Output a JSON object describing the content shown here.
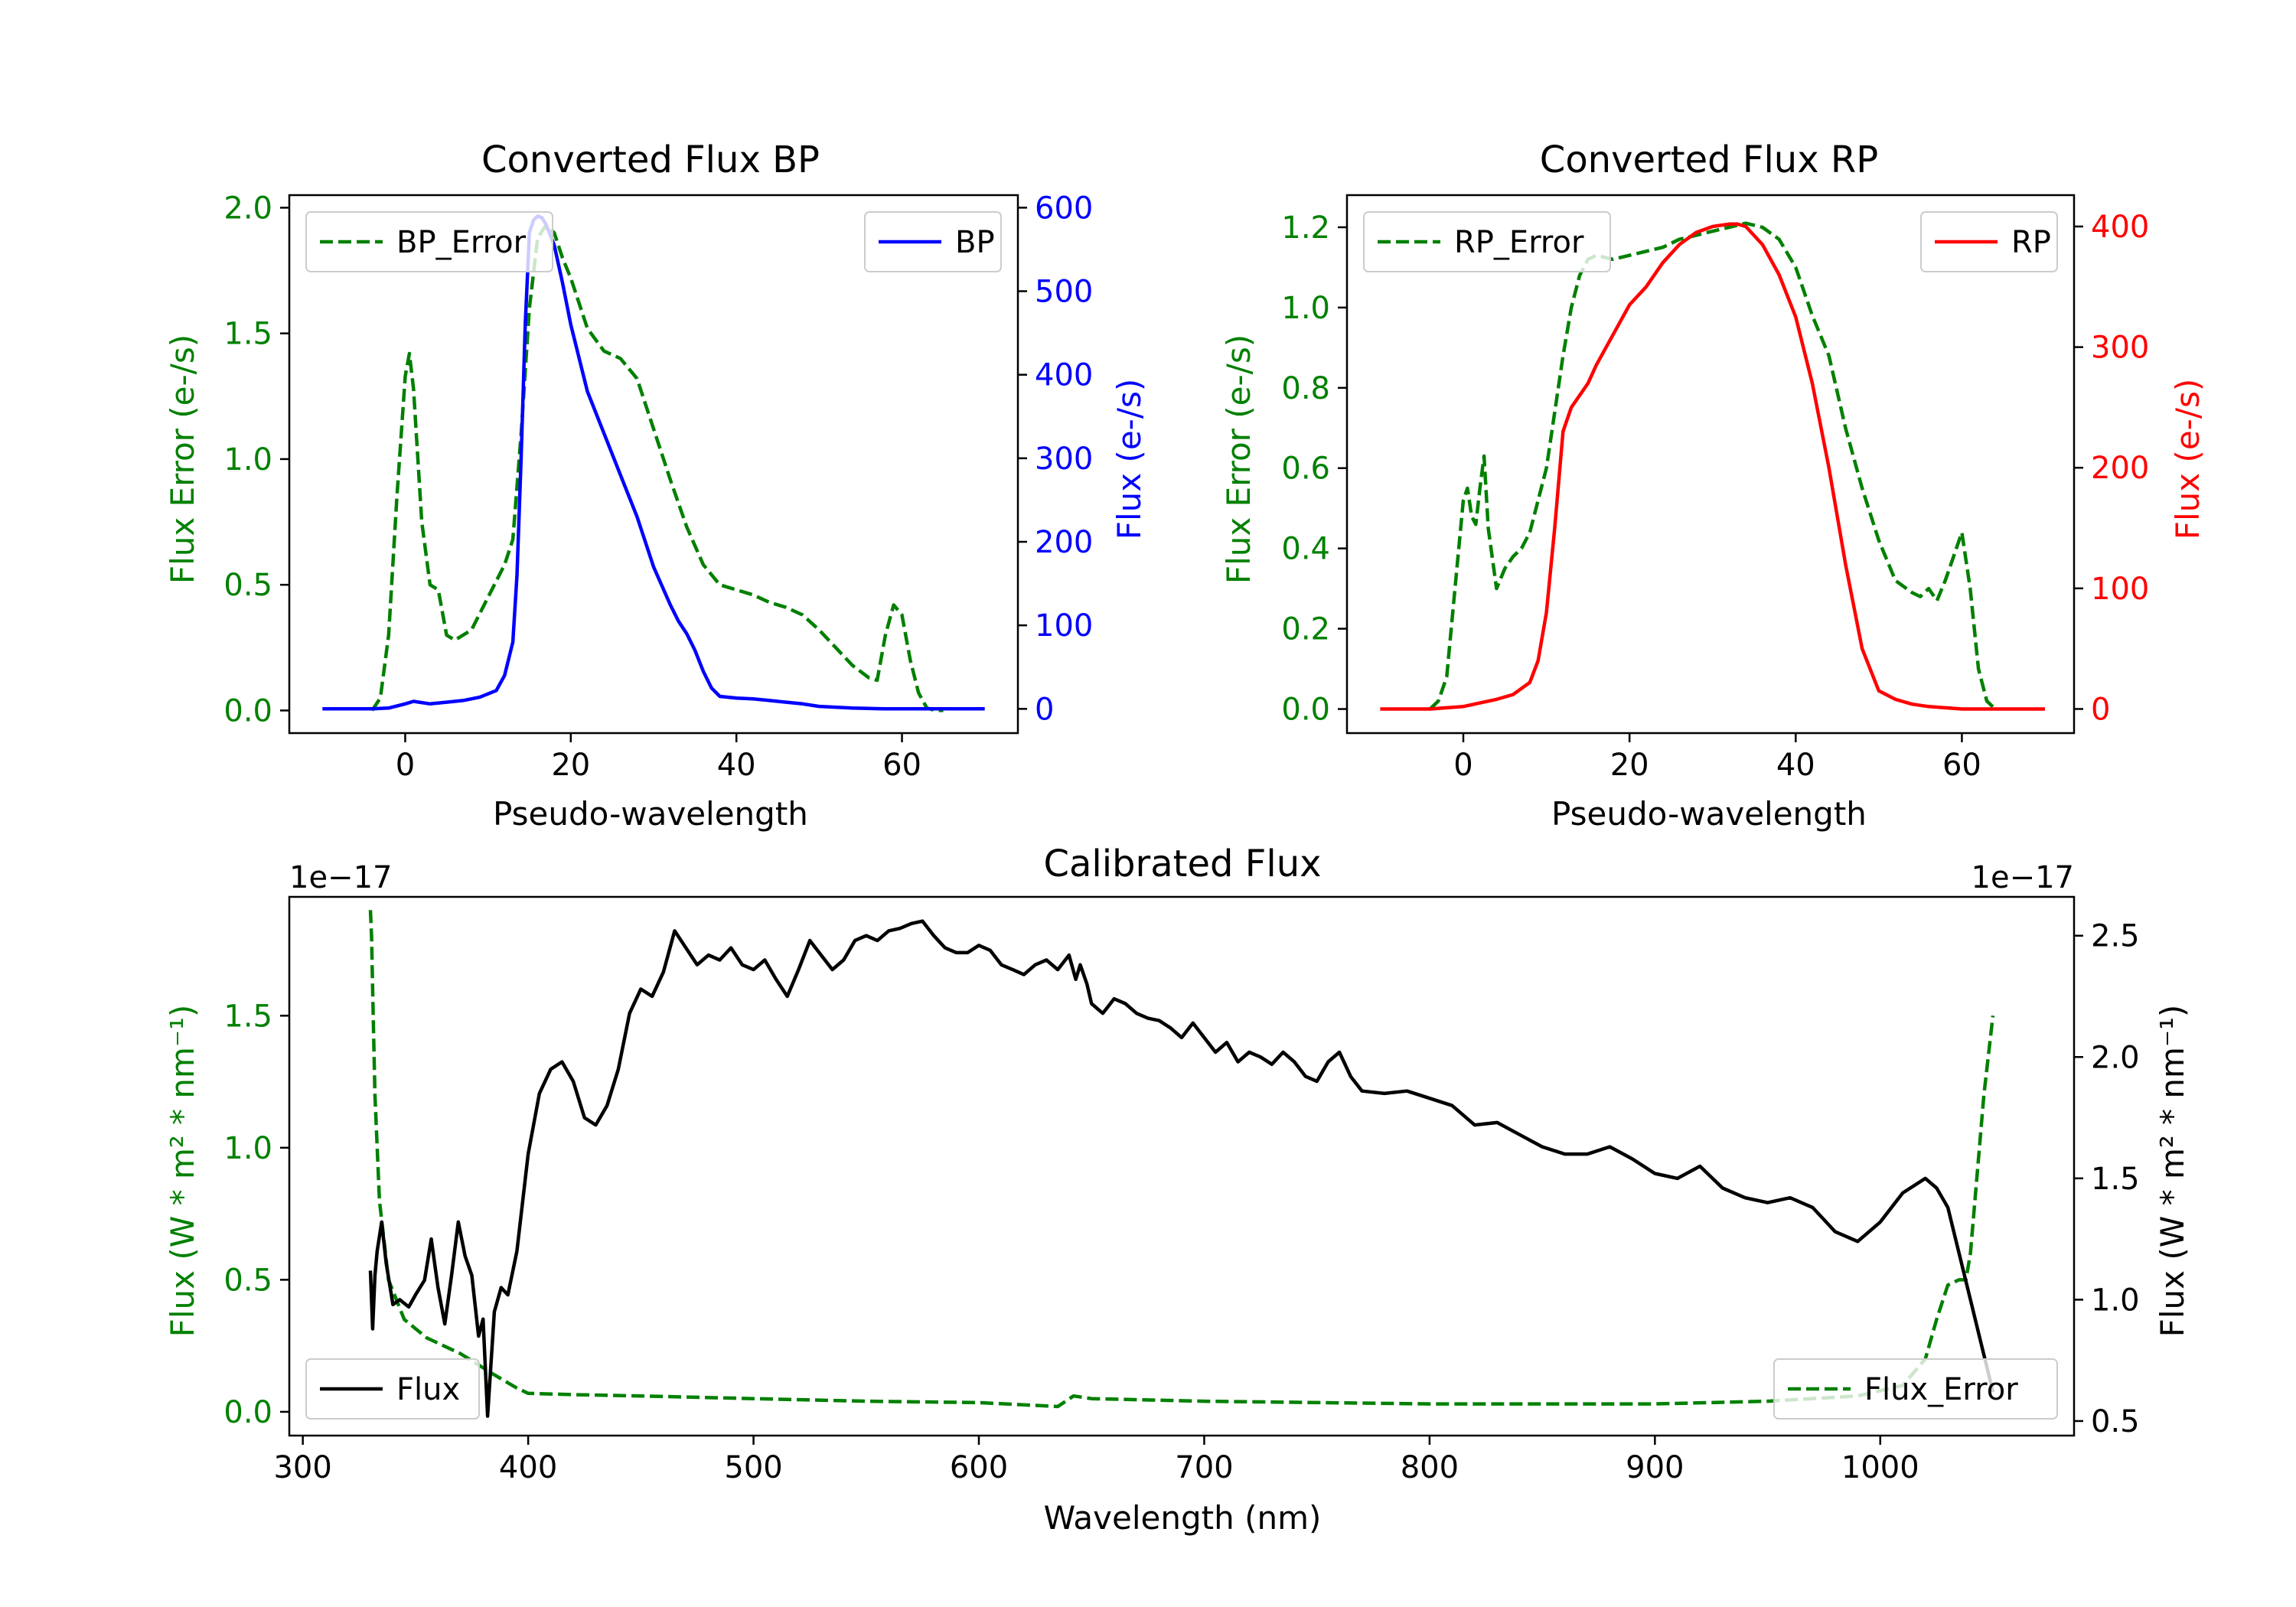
{
  "chart_data": [
    {
      "type": "line",
      "title": "Converted Flux BP",
      "xlabel": "Pseudo-wavelength",
      "ylabel_left": "Flux Error (e-/s)",
      "ylabel_right": "Flux (e-/s)",
      "xlim": [
        -14,
        74
      ],
      "ylim_left": [
        -0.09,
        2.05
      ],
      "ylim_right": [
        -29,
        615
      ],
      "xticks": [
        "0",
        "20",
        "40",
        "60"
      ],
      "yticks_left": [
        "0.0",
        "0.5",
        "1.0",
        "1.5",
        "2.0"
      ],
      "yticks_right": [
        "0",
        "100",
        "200",
        "300",
        "400",
        "500",
        "600"
      ],
      "legend_left": {
        "label": "BP_Error",
        "placement": "upper left"
      },
      "legend_right": {
        "label": "BP",
        "placement": "upper right"
      },
      "series": [
        {
          "name": "BP_Error",
          "axis": "left",
          "color": "#008000",
          "style": "dashed",
          "x": [
            -4,
            -3,
            -2,
            -1,
            0,
            0.5,
            1,
            2,
            3,
            4,
            5,
            6,
            8,
            10,
            12,
            13,
            14,
            15,
            16,
            17,
            18,
            19,
            20,
            22,
            24,
            26,
            28,
            30,
            32,
            34,
            36,
            38,
            40,
            42,
            44,
            46,
            48,
            50,
            52,
            54,
            56,
            57,
            58,
            59,
            60,
            61,
            62,
            63,
            64,
            65
          ],
          "y": [
            0.0,
            0.05,
            0.3,
            0.85,
            1.33,
            1.42,
            1.28,
            0.75,
            0.5,
            0.48,
            0.3,
            0.28,
            0.32,
            0.45,
            0.58,
            0.68,
            1.1,
            1.6,
            1.88,
            1.93,
            1.9,
            1.8,
            1.72,
            1.52,
            1.43,
            1.4,
            1.32,
            1.12,
            0.92,
            0.73,
            0.58,
            0.5,
            0.48,
            0.46,
            0.43,
            0.41,
            0.38,
            0.32,
            0.25,
            0.18,
            0.13,
            0.12,
            0.3,
            0.42,
            0.38,
            0.2,
            0.07,
            0.01,
            0.0,
            0.0
          ]
        },
        {
          "name": "BP",
          "axis": "right",
          "color": "#0000ff",
          "style": "solid",
          "x": [
            -10,
            -4,
            -2,
            0,
            1,
            3,
            5,
            7,
            9,
            11,
            12,
            13,
            13.5,
            14,
            14.5,
            15,
            15.5,
            16,
            16.5,
            17,
            18,
            19,
            20,
            22,
            24,
            26,
            28,
            30,
            32,
            33,
            34,
            35,
            36,
            37,
            38,
            40,
            42,
            44,
            46,
            48,
            50,
            54,
            58,
            62,
            66,
            70
          ],
          "y": [
            0,
            0,
            1,
            6,
            9,
            6,
            8,
            10,
            14,
            22,
            40,
            80,
            160,
            300,
            460,
            570,
            585,
            590,
            588,
            580,
            555,
            510,
            460,
            380,
            330,
            280,
            230,
            170,
            125,
            105,
            90,
            70,
            45,
            25,
            15,
            13,
            12,
            10,
            8,
            6,
            3,
            1,
            0,
            0,
            0,
            0
          ]
        }
      ]
    },
    {
      "type": "line",
      "title": "Converted Flux RP",
      "xlabel": "Pseudo-wavelength",
      "ylabel_left": "Flux Error (e-/s)",
      "ylabel_right": "Flux (e-/s)",
      "xlim": [
        -14,
        73.5
      ],
      "ylim_left": [
        -0.06,
        1.28
      ],
      "ylim_right": [
        -20,
        426
      ],
      "xticks": [
        "0",
        "20",
        "40",
        "60"
      ],
      "yticks_left": [
        "0.0",
        "0.2",
        "0.4",
        "0.6",
        "0.8",
        "1.0",
        "1.2"
      ],
      "yticks_right": [
        "0",
        "100",
        "200",
        "300",
        "400"
      ],
      "legend_left": {
        "label": "RP_Error",
        "placement": "upper left"
      },
      "legend_right": {
        "label": "RP",
        "placement": "upper right"
      },
      "series": [
        {
          "name": "RP_Error",
          "axis": "left",
          "color": "#008000",
          "style": "dashed",
          "x": [
            -4,
            -3,
            -2,
            -1,
            0,
            0.5,
            1,
            1.5,
            2,
            2.5,
            3,
            4,
            5,
            6,
            7,
            8,
            10,
            12,
            13,
            14,
            15,
            16,
            18,
            20,
            22,
            24,
            26,
            28,
            30,
            32,
            34,
            36,
            38,
            40,
            42,
            44,
            46,
            48,
            50,
            52,
            54,
            55,
            56,
            57,
            58,
            59,
            60,
            61,
            62,
            63,
            64
          ],
          "y": [
            0.0,
            0.02,
            0.08,
            0.3,
            0.52,
            0.55,
            0.48,
            0.46,
            0.55,
            0.63,
            0.45,
            0.3,
            0.35,
            0.38,
            0.4,
            0.44,
            0.6,
            0.88,
            1.0,
            1.08,
            1.12,
            1.13,
            1.12,
            1.13,
            1.14,
            1.15,
            1.17,
            1.18,
            1.19,
            1.2,
            1.21,
            1.2,
            1.17,
            1.1,
            0.98,
            0.88,
            0.7,
            0.55,
            0.42,
            0.32,
            0.29,
            0.28,
            0.3,
            0.27,
            0.32,
            0.38,
            0.44,
            0.3,
            0.1,
            0.02,
            0.0
          ]
        },
        {
          "name": "RP",
          "axis": "right",
          "color": "#ff0000",
          "style": "solid",
          "x": [
            -10,
            -4,
            -2,
            0,
            2,
            4,
            6,
            8,
            9,
            10,
            11,
            12,
            13,
            14,
            15,
            16,
            18,
            20,
            22,
            24,
            26,
            28,
            30,
            32,
            33,
            34,
            36,
            38,
            40,
            42,
            44,
            46,
            48,
            50,
            52,
            54,
            56,
            58,
            60,
            62,
            66,
            70
          ],
          "y": [
            0,
            0,
            1,
            2,
            5,
            8,
            12,
            22,
            40,
            80,
            150,
            230,
            250,
            260,
            270,
            285,
            310,
            335,
            350,
            370,
            385,
            395,
            400,
            402,
            402,
            400,
            385,
            360,
            325,
            270,
            200,
            120,
            50,
            15,
            8,
            4,
            2,
            1,
            0,
            0,
            0,
            0
          ]
        }
      ]
    },
    {
      "type": "line",
      "title": "Calibrated Flux",
      "xlabel": "Wavelength (nm)",
      "ylabel_left": "Flux (W * m² * nm⁻¹)",
      "ylabel_right": "Flux (W * m² * nm⁻¹)",
      "offset_left": "1e−17",
      "offset_right": "1e−17",
      "xlim": [
        294,
        1086
      ],
      "ylim_left": [
        -0.09,
        1.95
      ],
      "ylim_right": [
        0.44,
        2.66
      ],
      "xticks": [
        "300",
        "400",
        "500",
        "600",
        "700",
        "800",
        "900",
        "1000"
      ],
      "yticks_left": [
        "0.0",
        "0.5",
        "1.0",
        "1.5"
      ],
      "yticks_right": [
        "0.5",
        "1.0",
        "1.5",
        "2.0",
        "2.5"
      ],
      "legend_left": {
        "label": "Flux",
        "placement": "lower left"
      },
      "legend_right": {
        "label": "Flux_Error",
        "placement": "lower right"
      },
      "series": [
        {
          "name": "Flux_Error",
          "axis": "left",
          "color": "#008000",
          "style": "dashed",
          "x": [
            330,
            330.5,
            331,
            332,
            334,
            338,
            345,
            355,
            370,
            385,
            395,
            400,
            420,
            450,
            500,
            550,
            600,
            635,
            642,
            650,
            700,
            800,
            900,
            950,
            990,
            1010,
            1020,
            1025,
            1030,
            1035,
            1038,
            1040,
            1043,
            1046,
            1050
          ],
          "y": [
            1.9,
            1.8,
            1.6,
            1.2,
            0.8,
            0.5,
            0.35,
            0.28,
            0.22,
            0.14,
            0.09,
            0.07,
            0.065,
            0.06,
            0.05,
            0.04,
            0.035,
            0.02,
            0.06,
            0.05,
            0.04,
            0.03,
            0.03,
            0.04,
            0.06,
            0.1,
            0.2,
            0.35,
            0.48,
            0.5,
            0.5,
            0.6,
            0.9,
            1.2,
            1.5
          ]
        },
        {
          "name": "Flux",
          "axis": "right",
          "color": "#000000",
          "style": "solid",
          "x": [
            330,
            331,
            332,
            333,
            335,
            337,
            340,
            343,
            347,
            350,
            354,
            357,
            360,
            363,
            366,
            369,
            372,
            375,
            378,
            380,
            382,
            385,
            388,
            391,
            395,
            400,
            405,
            410,
            415,
            420,
            425,
            430,
            435,
            440,
            445,
            450,
            455,
            460,
            465,
            470,
            475,
            480,
            485,
            490,
            495,
            500,
            505,
            510,
            515,
            520,
            525,
            530,
            535,
            540,
            545,
            550,
            555,
            560,
            565,
            570,
            575,
            580,
            585,
            590,
            595,
            600,
            605,
            610,
            615,
            620,
            625,
            630,
            635,
            640,
            643,
            645,
            648,
            650,
            655,
            660,
            665,
            670,
            675,
            680,
            685,
            690,
            695,
            700,
            705,
            710,
            715,
            720,
            725,
            730,
            735,
            740,
            745,
            750,
            755,
            760,
            765,
            770,
            780,
            790,
            800,
            810,
            820,
            830,
            840,
            850,
            860,
            870,
            880,
            890,
            900,
            910,
            920,
            930,
            940,
            950,
            960,
            970,
            980,
            990,
            1000,
            1010,
            1020,
            1025,
            1030,
            1040,
            1050
          ],
          "y": [
            1.12,
            0.88,
            1.1,
            1.2,
            1.32,
            1.15,
            0.98,
            1.0,
            0.97,
            1.02,
            1.08,
            1.25,
            1.05,
            0.9,
            1.1,
            1.32,
            1.18,
            1.1,
            0.85,
            0.92,
            0.52,
            0.95,
            1.05,
            1.02,
            1.2,
            1.6,
            1.85,
            1.95,
            1.98,
            1.9,
            1.75,
            1.72,
            1.8,
            1.95,
            2.18,
            2.28,
            2.25,
            2.35,
            2.52,
            2.45,
            2.38,
            2.42,
            2.4,
            2.45,
            2.38,
            2.36,
            2.4,
            2.32,
            2.25,
            2.36,
            2.48,
            2.42,
            2.36,
            2.4,
            2.48,
            2.5,
            2.48,
            2.52,
            2.53,
            2.55,
            2.56,
            2.5,
            2.45,
            2.43,
            2.43,
            2.46,
            2.44,
            2.38,
            2.36,
            2.34,
            2.38,
            2.4,
            2.36,
            2.42,
            2.32,
            2.38,
            2.3,
            2.22,
            2.18,
            2.24,
            2.22,
            2.18,
            2.16,
            2.15,
            2.12,
            2.08,
            2.14,
            2.08,
            2.02,
            2.06,
            1.98,
            2.02,
            2.0,
            1.97,
            2.02,
            1.98,
            1.92,
            1.9,
            1.98,
            2.02,
            1.92,
            1.86,
            1.85,
            1.86,
            1.83,
            1.8,
            1.72,
            1.73,
            1.68,
            1.63,
            1.6,
            1.6,
            1.63,
            1.58,
            1.52,
            1.5,
            1.55,
            1.46,
            1.42,
            1.4,
            1.42,
            1.38,
            1.28,
            1.24,
            1.32,
            1.44,
            1.5,
            1.46,
            1.38,
            1.0,
            0.62
          ]
        }
      ]
    }
  ]
}
